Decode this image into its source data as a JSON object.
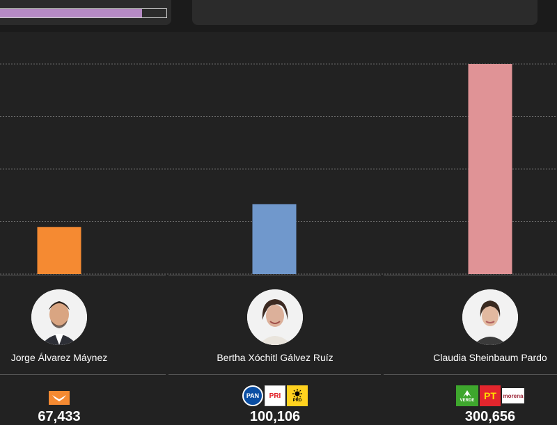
{
  "header": {
    "progress_fraction": 0.86,
    "accent_color": "#b58ac4"
  },
  "chart_data": {
    "type": "bar",
    "categories": [
      "Jorge Álvarez Máynez",
      "Bertha Xóchitl Gálvez Ruíz",
      "Claudia Sheinbaum Pardo"
    ],
    "values": [
      67433,
      100106,
      300656
    ],
    "colors": [
      "#f58a32",
      "#7098cc",
      "#e09396"
    ],
    "ylim": [
      0,
      300656
    ],
    "grid": true
  },
  "candidates": [
    {
      "name": "Jorge Álvarez Máynez",
      "votes": "67,433",
      "parties": [
        {
          "label": "MC",
          "bg": "#f58a32",
          "fg": "#ffffff",
          "icon": "movimiento-ciudadano-logo"
        }
      ]
    },
    {
      "name": "Bertha Xóchitl Gálvez Ruíz",
      "votes": "100,106",
      "parties": [
        {
          "label": "PAN",
          "bg": "#0a4ea3",
          "fg": "#ffffff",
          "icon": "pan-logo"
        },
        {
          "label": "PRI",
          "bg": "#ffffff",
          "fg": "#e11b22",
          "icon": "pri-logo"
        },
        {
          "label": "PRD",
          "bg": "#ffd21f",
          "fg": "#000000",
          "icon": "prd-logo"
        }
      ]
    },
    {
      "name": "Claudia Sheinbaum Pardo",
      "votes": "300,656",
      "parties": [
        {
          "label": "VERDE",
          "bg": "#3ea72d",
          "fg": "#ffffff",
          "icon": "verde-logo"
        },
        {
          "label": "PT",
          "bg": "#e3262d",
          "fg": "#ffde00",
          "icon": "pt-logo"
        },
        {
          "label": "morena",
          "bg": "#ffffff",
          "fg": "#9b2335",
          "icon": "morena-logo"
        }
      ]
    }
  ]
}
